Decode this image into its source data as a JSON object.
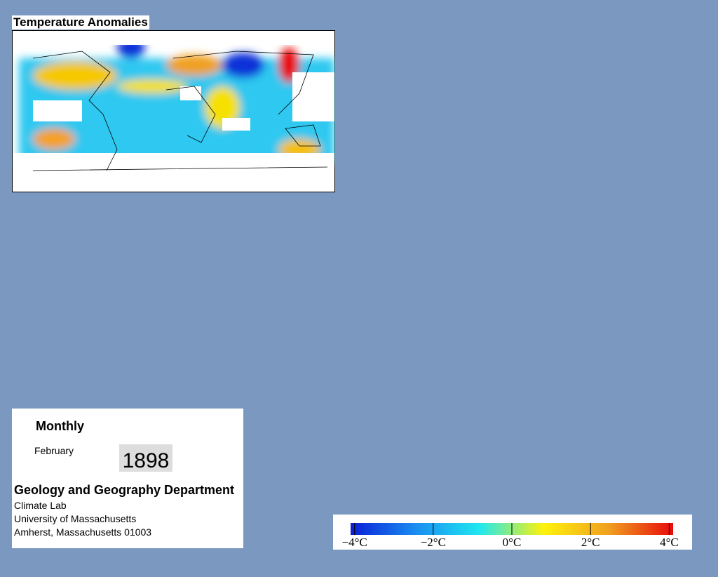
{
  "map": {
    "title": "Temperature Anomalies"
  },
  "info": {
    "period": "Monthly",
    "month": "February",
    "year": "1898",
    "department": "Geology and Geography Department",
    "address": [
      "Climate Lab",
      "University of Massachusetts",
      "Amherst, Massachusetts 01003"
    ]
  },
  "colorbar": {
    "lim": [
      -4.1,
      4.1
    ],
    "ticks": [
      {
        "value": -4,
        "label": "−4°C"
      },
      {
        "value": -2,
        "label": "−2°C"
      },
      {
        "value": 0,
        "label": "0°C"
      },
      {
        "value": 2,
        "label": "2°C"
      },
      {
        "value": 4,
        "label": "4°C"
      }
    ],
    "colors": [
      "#0a1ed8",
      "#1a8cf0",
      "#20e8f0",
      "#fff20a",
      "#f0a020",
      "#e80a0a"
    ]
  }
}
